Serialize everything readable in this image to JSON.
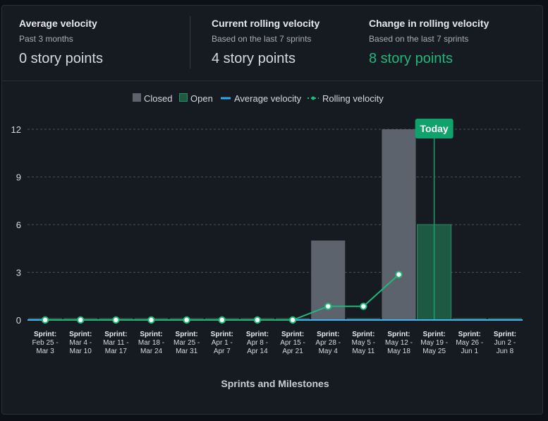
{
  "stats": [
    {
      "title": "Average velocity",
      "subtitle": "Past 3 months",
      "value": "0 story points",
      "highlight": false
    },
    {
      "title": "Current rolling velocity",
      "subtitle": "Based on the last 7 sprints",
      "value": "4 story points",
      "highlight": false
    },
    {
      "title": "Change in rolling velocity",
      "subtitle": "Based on the last 7 sprints",
      "value": "8 story points",
      "highlight": true
    }
  ],
  "colors": {
    "closed": "#5d636d",
    "open": "#1e5a43",
    "open_border": "#2a8f64",
    "average": "#30a9f0",
    "rolling": "#1fb87a",
    "today": "#10a26b",
    "grid": "#4a505a",
    "baseline": "#3fb6f5"
  },
  "chart_data": {
    "type": "bar",
    "title": "",
    "xlabel": "Sprints and Milestones",
    "ylabel": "",
    "ylim": [
      0,
      13
    ],
    "yticks": [
      0,
      3,
      6,
      9,
      12
    ],
    "grid": true,
    "legend_position": "top",
    "legend": [
      {
        "label": "Closed",
        "kind": "box",
        "series": "closed"
      },
      {
        "label": "Open",
        "kind": "box",
        "series": "open"
      },
      {
        "label": "Average velocity",
        "kind": "line",
        "series": "average"
      },
      {
        "label": "Rolling velocity",
        "kind": "dotline",
        "series": "rolling"
      }
    ],
    "categories": [
      {
        "top": "Sprint:",
        "l1": "Feb 25 -",
        "l2": "Mar 3"
      },
      {
        "top": "Sprint:",
        "l1": "Mar 4 -",
        "l2": "Mar 10"
      },
      {
        "top": "Sprint:",
        "l1": "Mar 11 -",
        "l2": "Mar 17"
      },
      {
        "top": "Sprint:",
        "l1": "Mar 18 -",
        "l2": "Mar 24"
      },
      {
        "top": "Sprint:",
        "l1": "Mar 25 -",
        "l2": "Mar 31"
      },
      {
        "top": "Sprint:",
        "l1": "Apr 1 -",
        "l2": "Apr 7"
      },
      {
        "top": "Sprint:",
        "l1": "Apr 8 -",
        "l2": "Apr 14"
      },
      {
        "top": "Sprint:",
        "l1": "Apr 15 -",
        "l2": "Apr 21"
      },
      {
        "top": "Sprint:",
        "l1": "Apr 28 -",
        "l2": "May 4"
      },
      {
        "top": "Sprint:",
        "l1": "May 5 -",
        "l2": "May 11"
      },
      {
        "top": "Sprint:",
        "l1": "May 12 -",
        "l2": "May 18"
      },
      {
        "top": "Sprint:",
        "l1": "May 19 -",
        "l2": "May 25"
      },
      {
        "top": "Sprint:",
        "l1": "May 26 -",
        "l2": "Jun 1"
      },
      {
        "top": "Sprint:",
        "l1": "Jun 2 -",
        "l2": "Jun 8"
      }
    ],
    "series": [
      {
        "name": "Closed",
        "values": [
          0,
          0,
          0,
          0,
          0,
          0,
          0,
          0,
          5,
          0,
          12,
          0,
          0,
          0
        ]
      },
      {
        "name": "Open",
        "values": [
          0,
          0,
          0,
          0,
          0,
          0,
          0,
          0,
          0,
          0,
          0,
          6,
          0,
          0
        ]
      },
      {
        "name": "Average velocity",
        "values": [
          0,
          0,
          0,
          0,
          0,
          0,
          0,
          0,
          0,
          0,
          0,
          0,
          0,
          0
        ]
      },
      {
        "name": "Rolling velocity",
        "values": [
          0,
          0,
          0,
          0,
          0,
          0,
          0,
          0,
          0.86,
          0.86,
          2.86,
          null,
          null,
          null
        ]
      }
    ],
    "today_marker": {
      "label": "Today",
      "category_index": 11
    }
  }
}
